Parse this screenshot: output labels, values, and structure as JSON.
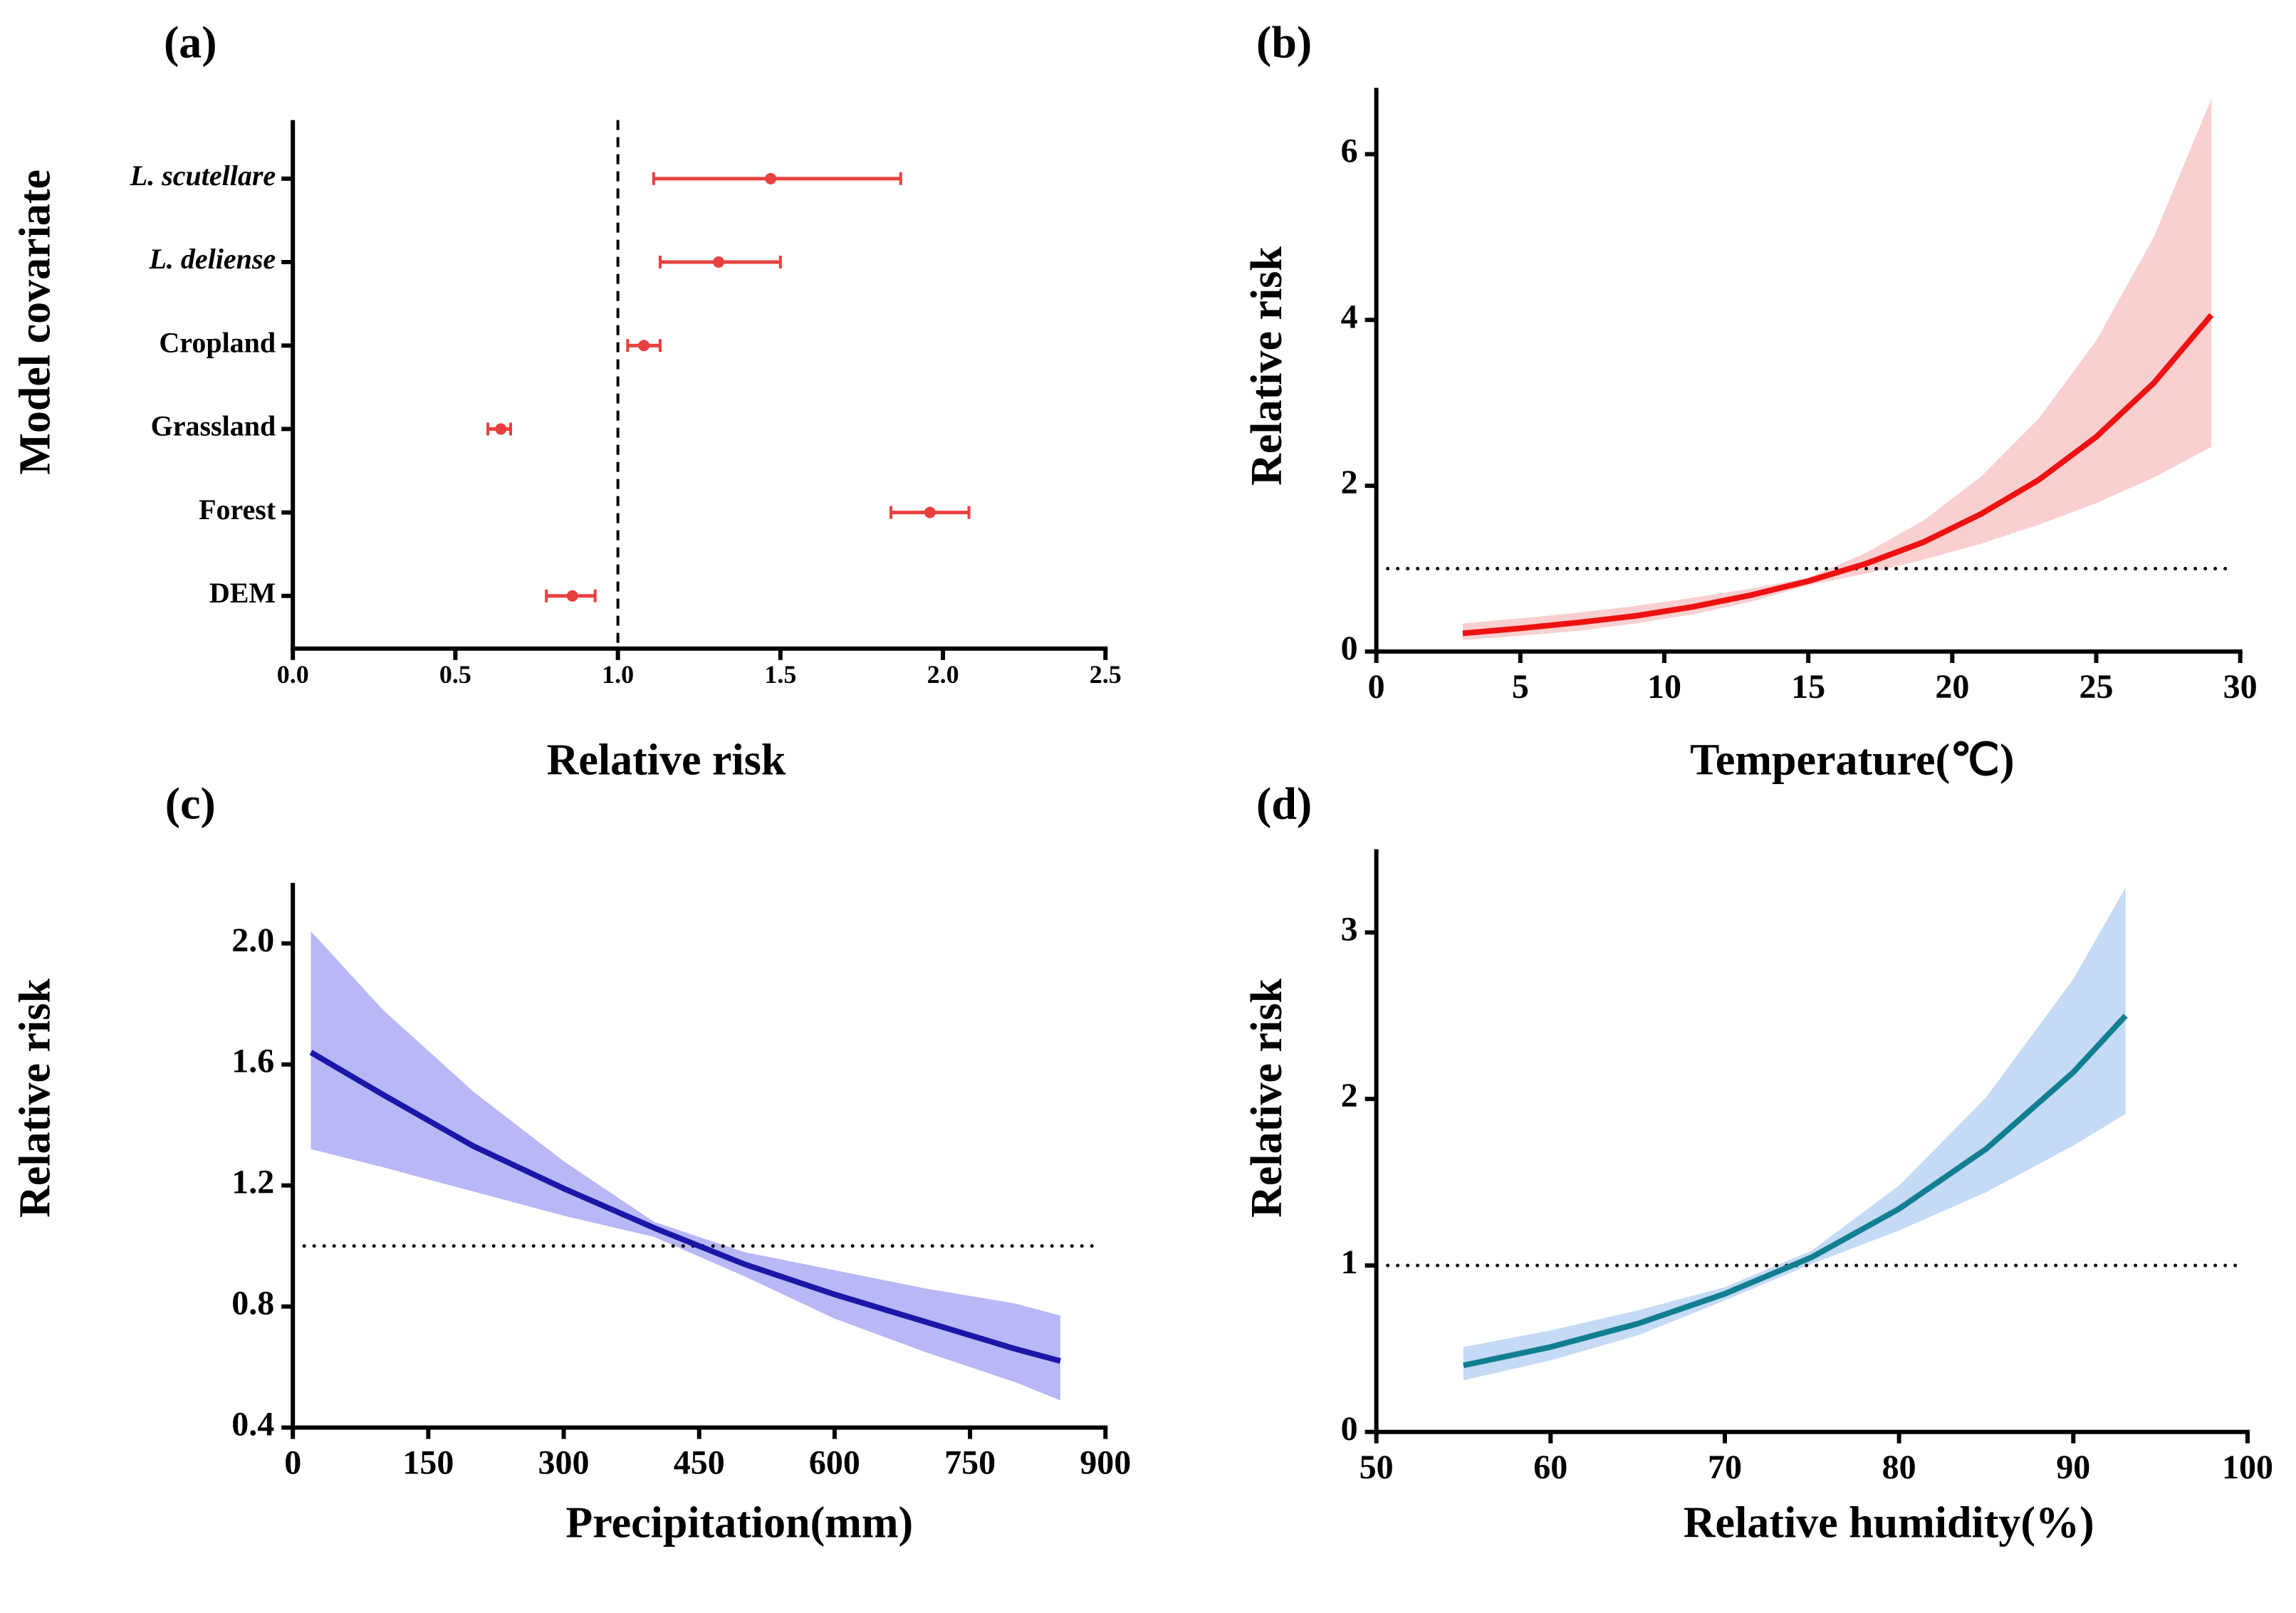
{
  "chart_data": [
    {
      "type": "forest",
      "title": "(a)",
      "xlabel": "Relative risk",
      "ylabel": "Model covariate",
      "categories": [
        "L. scutellare",
        "L. deliense",
        "Cropland",
        "Grassland",
        "Forest",
        "DEM"
      ],
      "category_italic": [
        true,
        true,
        false,
        false,
        false,
        false
      ],
      "values": [
        1.47,
        1.31,
        1.08,
        0.64,
        1.96,
        0.86
      ],
      "lower": [
        1.11,
        1.13,
        1.03,
        0.6,
        1.84,
        0.78
      ],
      "upper": [
        1.87,
        1.5,
        1.13,
        0.67,
        2.08,
        0.93
      ],
      "color": "#e8403f",
      "xlim": [
        0,
        2.5
      ],
      "xticks": [
        {
          "value": 0,
          "label": "0.0"
        },
        0.5,
        {
          "value": 1,
          "label": "1.0"
        },
        1.5,
        {
          "value": 2,
          "label": "2.0"
        },
        2.5
      ],
      "ref_line": 1
    },
    {
      "type": "line",
      "title": "(b)",
      "xlabel": "Temperature(℃)",
      "ylabel": "Relative risk",
      "x": [
        3,
        5,
        7,
        9,
        11,
        13,
        15,
        17,
        19,
        21,
        23,
        25,
        27,
        29
      ],
      "series": [
        {
          "color": "#ee1111",
          "band_color": "#f9cfcf",
          "values": [
            0.22,
            0.28,
            0.35,
            0.43,
            0.54,
            0.68,
            0.85,
            1.06,
            1.32,
            1.66,
            2.07,
            2.59,
            3.24,
            4.06
          ],
          "lower": [
            0.14,
            0.19,
            0.25,
            0.34,
            0.45,
            0.6,
            0.8,
            0.94,
            1.11,
            1.3,
            1.53,
            1.79,
            2.1,
            2.47
          ],
          "upper": [
            0.34,
            0.4,
            0.47,
            0.55,
            0.65,
            0.76,
            0.89,
            1.19,
            1.58,
            2.11,
            2.81,
            3.75,
            5.0,
            6.67
          ]
        }
      ],
      "xlim": [
        0,
        30
      ],
      "xticks": [
        0,
        5,
        10,
        15,
        20,
        25,
        30
      ],
      "ylim": [
        0,
        6.8
      ],
      "yticks": [
        0,
        2,
        4,
        6
      ],
      "ref_line": 1
    },
    {
      "type": "line",
      "title": "(c)",
      "xlabel": "Precipitation(mm)",
      "ylabel": "Relative risk",
      "x": [
        20,
        100,
        200,
        300,
        400,
        500,
        600,
        700,
        800,
        850
      ],
      "series": [
        {
          "color": "#1a17a8",
          "band_color": "#b8b8f7",
          "values": [
            1.64,
            1.5,
            1.33,
            1.19,
            1.06,
            0.94,
            0.84,
            0.75,
            0.66,
            0.62
          ],
          "lower": [
            1.32,
            1.26,
            1.18,
            1.1,
            1.03,
            0.9,
            0.76,
            0.65,
            0.55,
            0.49
          ],
          "upper": [
            2.04,
            1.78,
            1.51,
            1.28,
            1.08,
            0.98,
            0.92,
            0.86,
            0.81,
            0.77
          ]
        }
      ],
      "xlim": [
        0,
        900
      ],
      "xticks": [
        0,
        150,
        300,
        450,
        600,
        750,
        900
      ],
      "ylim": [
        0.4,
        2.2
      ],
      "yticks": [
        0.4,
        0.8,
        1.2,
        1.6,
        {
          "value": 2,
          "label": "2.0"
        }
      ],
      "ref_line": 1
    },
    {
      "type": "line",
      "title": "(d)",
      "xlabel": "Relative humidity(%)",
      "ylabel": "Relative risk",
      "x": [
        55,
        60,
        65,
        70,
        75,
        80,
        85,
        90,
        93
      ],
      "series": [
        {
          "color": "#127e91",
          "band_color": "#c4daf5",
          "values": [
            0.4,
            0.51,
            0.65,
            0.83,
            1.05,
            1.34,
            1.7,
            2.16,
            2.5
          ],
          "lower": [
            0.31,
            0.43,
            0.58,
            0.79,
            1.01,
            1.21,
            1.44,
            1.72,
            1.91
          ],
          "upper": [
            0.51,
            0.61,
            0.73,
            0.87,
            1.09,
            1.48,
            2.01,
            2.72,
            3.27
          ]
        }
      ],
      "xlim": [
        50,
        100
      ],
      "xticks": [
        50,
        60,
        70,
        80,
        90,
        100
      ],
      "ylim": [
        0,
        3.5
      ],
      "yticks": [
        0,
        1,
        2,
        3
      ],
      "ref_line": 1
    }
  ]
}
